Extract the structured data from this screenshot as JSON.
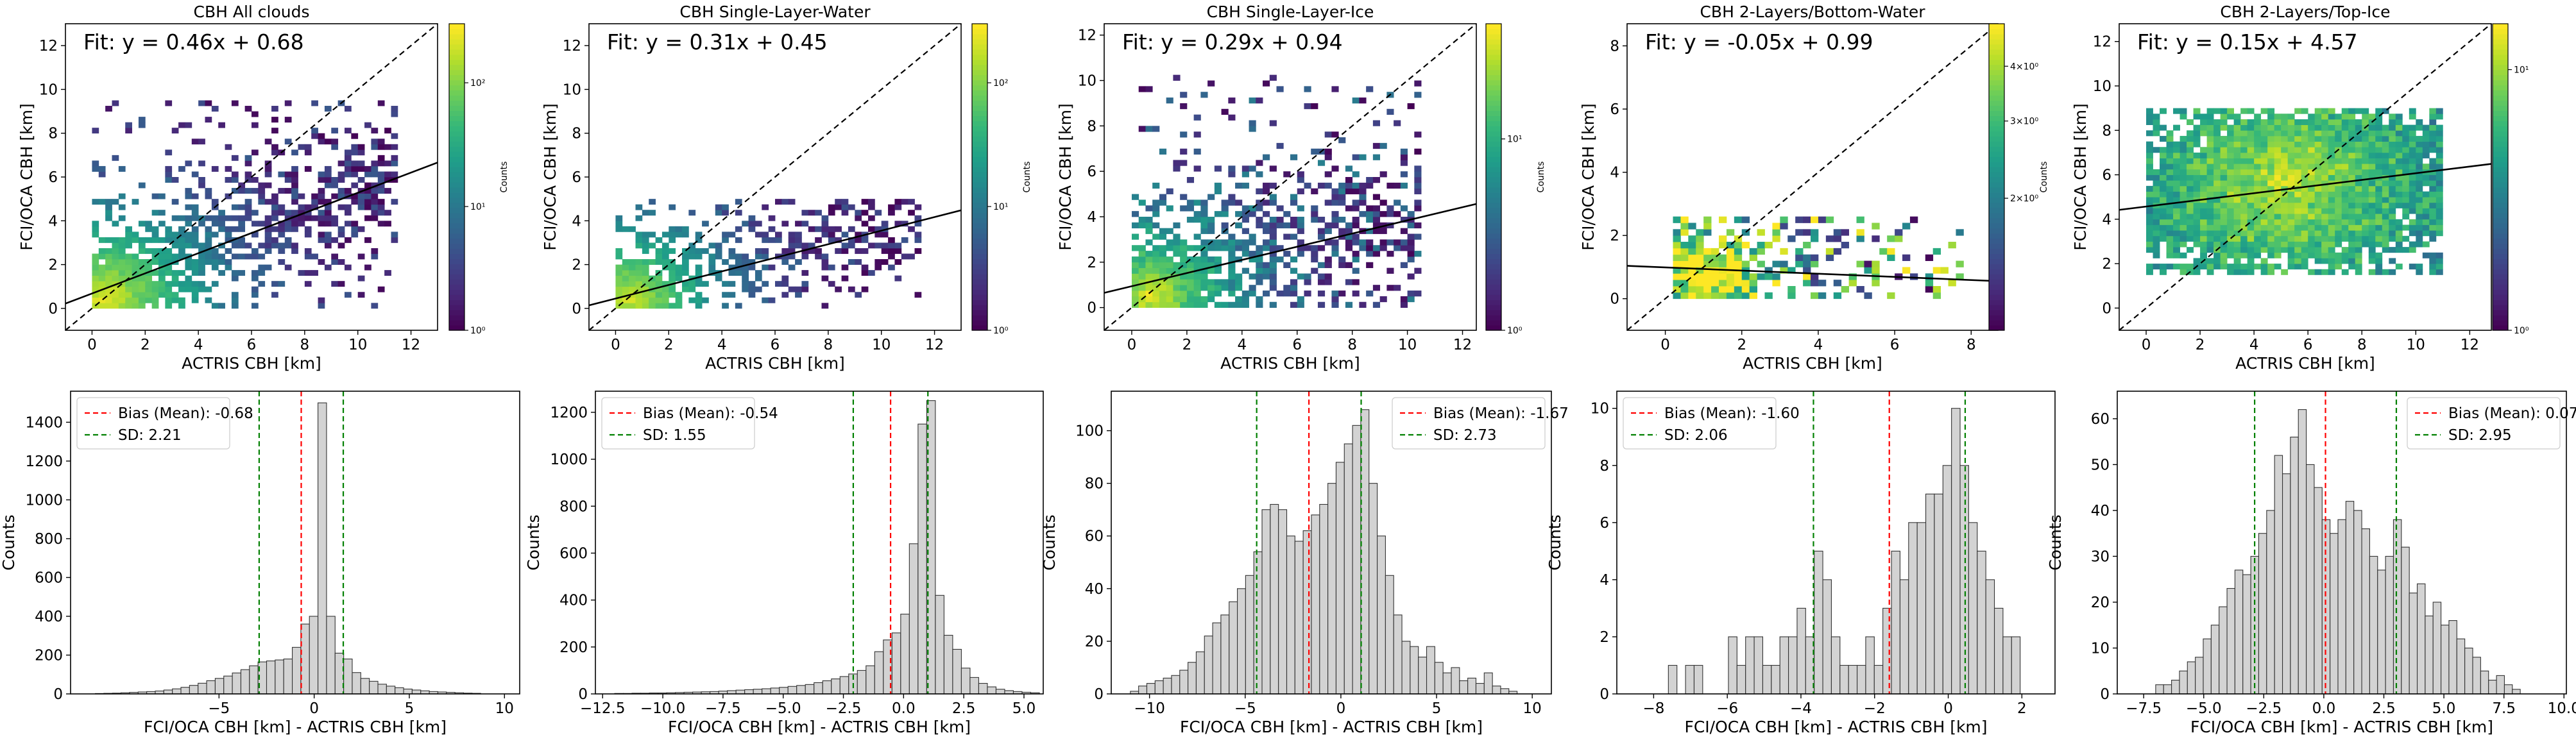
{
  "figure": {
    "colormap": [
      "#440154",
      "#482878",
      "#3e4989",
      "#31688e",
      "#26828e",
      "#1f9e89",
      "#35b779",
      "#6ece58",
      "#b5de2b",
      "#fde725"
    ],
    "fit_line_color": "#000000",
    "identity_line_color": "#000000",
    "hist_bar_color": "#d3d3d3",
    "hist_edge_color": "#333333",
    "bias_line_color": "#ff0000",
    "sd_line_color": "#008000"
  },
  "chart_data": [
    {
      "type": "heatmap",
      "title": "CBH All clouds",
      "fit_label": "Fit: y = 0.46x + 0.68",
      "fit": {
        "slope": 0.46,
        "intercept": 0.68
      },
      "xlabel": "ACTRIS CBH [km]",
      "ylabel": "FCI/OCA CBH [km]",
      "xlim": [
        -1,
        13
      ],
      "ylim": [
        -1,
        13
      ],
      "xticks": [
        0,
        2,
        4,
        6,
        8,
        10,
        12
      ],
      "yticks": [
        0,
        2,
        4,
        6,
        8,
        10,
        12
      ],
      "identity_line": true,
      "colorbar": {
        "label": "Counts",
        "scale": "log",
        "range": [
          1,
          300
        ],
        "ticks": [
          "10⁰",
          "10¹",
          "10²"
        ],
        "tick_values": [
          1,
          10,
          100
        ]
      },
      "density": {
        "bin": 0.25,
        "x_range": [
          0,
          11.5
        ],
        "y_range": [
          0,
          9.3
        ],
        "base": 0.55,
        "peak": {
          "x": 0.3,
          "y": 0.3,
          "counts": 300
        },
        "decay": 0.75,
        "trend": {
          "slope": 0.46,
          "intercept": 0.68,
          "spread": 2.2
        },
        "seed": 11
      }
    },
    {
      "type": "heatmap",
      "title": "CBH Single-Layer-Water",
      "fit_label": "Fit: y = 0.31x + 0.45",
      "fit": {
        "slope": 0.31,
        "intercept": 0.45
      },
      "xlabel": "ACTRIS CBH [km]",
      "ylabel": "FCI/OCA CBH [km]",
      "xlim": [
        -1,
        13
      ],
      "ylim": [
        -1,
        13
      ],
      "xticks": [
        0,
        2,
        4,
        6,
        8,
        10,
        12
      ],
      "yticks": [
        0,
        2,
        4,
        6,
        8,
        10,
        12
      ],
      "identity_line": true,
      "colorbar": {
        "label": "Counts",
        "scale": "log",
        "range": [
          1,
          300
        ],
        "ticks": [
          "10⁰",
          "10¹",
          "10²"
        ],
        "tick_values": [
          1,
          10,
          100
        ]
      },
      "density": {
        "bin": 0.25,
        "x_range": [
          0,
          11.5
        ],
        "y_range": [
          0,
          4.8
        ],
        "base": 0.45,
        "peak": {
          "x": 0.4,
          "y": 0.3,
          "counts": 250
        },
        "decay": 0.85,
        "trend": {
          "slope": 0.31,
          "intercept": 0.45,
          "spread": 1.6
        },
        "seed": 23
      }
    },
    {
      "type": "heatmap",
      "title": "CBH Single-Layer-Ice",
      "fit_label": "Fit: y = 0.29x + 0.94",
      "fit": {
        "slope": 0.29,
        "intercept": 0.94
      },
      "xlabel": "ACTRIS CBH [km]",
      "ylabel": "FCI/OCA CBH [km]",
      "xlim": [
        -1,
        12.5
      ],
      "ylim": [
        -1,
        12.5
      ],
      "xticks": [
        0,
        2,
        4,
        6,
        8,
        10,
        12
      ],
      "yticks": [
        0,
        2,
        4,
        6,
        8,
        10,
        12
      ],
      "identity_line": true,
      "colorbar": {
        "label": "Counts",
        "scale": "log",
        "range": [
          1,
          40
        ],
        "ticks": [
          "10⁰",
          "10¹"
        ],
        "tick_values": [
          1,
          10
        ]
      },
      "density": {
        "bin": 0.25,
        "x_range": [
          0,
          10.3
        ],
        "y_range": [
          0,
          10.2
        ],
        "base": 0.42,
        "peak": {
          "x": 0.6,
          "y": 0.4,
          "counts": 40
        },
        "decay": 0.7,
        "trend": {
          "slope": 0.29,
          "intercept": 0.94,
          "spread": 2.4
        },
        "seed": 37
      }
    },
    {
      "type": "heatmap",
      "title": "CBH 2-Layers/Bottom-Water",
      "fit_label": "Fit: y = -0.05x + 0.99",
      "fit": {
        "slope": -0.05,
        "intercept": 0.99
      },
      "xlabel": "ACTRIS CBH [km]",
      "ylabel": "FCI/OCA CBH [km]",
      "xlim": [
        -1,
        8.7
      ],
      "ylim": [
        -1,
        8.7
      ],
      "xticks": [
        0,
        2,
        4,
        6,
        8
      ],
      "yticks": [
        0,
        2,
        4,
        6,
        8
      ],
      "identity_line": true,
      "colorbar": {
        "label": "Counts",
        "scale": "log",
        "range": [
          1,
          5
        ],
        "ticks": [
          "2×10⁰",
          "3×10⁰",
          "4×10⁰"
        ],
        "tick_values": [
          2,
          3,
          4
        ]
      },
      "density": {
        "bin": 0.2,
        "x_range": [
          0.2,
          7.8
        ],
        "y_range": [
          0,
          2.6
        ],
        "base": 0.18,
        "peak": {
          "x": 1.0,
          "y": 0.6,
          "counts": 5
        },
        "decay": 0.9,
        "trend": {
          "slope": -0.05,
          "intercept": 0.99,
          "spread": 0.9
        },
        "seed": 53
      }
    },
    {
      "type": "heatmap",
      "title": "CBH 2-Layers/Top-Ice",
      "fit_label": "Fit: y = 0.15x + 4.57",
      "fit": {
        "slope": 0.15,
        "intercept": 4.57
      },
      "xlabel": "ACTRIS CBH [km]",
      "ylabel": "FCI/OCA CBH [km]",
      "xlim": [
        -1,
        12.8
      ],
      "ylim": [
        -1,
        12.8
      ],
      "xticks": [
        0,
        2,
        4,
        6,
        8,
        10,
        12
      ],
      "yticks": [
        0,
        2,
        4,
        6,
        8,
        10,
        12
      ],
      "identity_line": true,
      "colorbar": {
        "label": "",
        "scale": "log",
        "range": [
          1,
          15
        ],
        "ticks": [
          "10⁰",
          "10¹"
        ],
        "tick_values": [
          1,
          10
        ]
      },
      "density": {
        "bin": 0.25,
        "x_range": [
          0,
          10.8
        ],
        "y_range": [
          1.5,
          8.8
        ],
        "base": 0.5,
        "peak": {
          "x": 5.0,
          "y": 5.5,
          "counts": 12
        },
        "decay": 0.25,
        "trend": {
          "slope": 0.15,
          "intercept": 4.57,
          "spread": 2.2
        },
        "seed": 71
      }
    },
    {
      "type": "bar",
      "histogram": true,
      "xlabel": "FCI/OCA CBH [km] - ACTRIS CBH [km]",
      "ylabel": "Counts",
      "xlim": [
        -12.8,
        10.8
      ],
      "ylim": [
        0,
        1560
      ],
      "xticks": [
        -5,
        0,
        5,
        10
      ],
      "yticks": [
        0,
        200,
        400,
        600,
        800,
        1000,
        1200,
        1400
      ],
      "bias": -0.68,
      "sd": 2.21,
      "legend": [
        "Bias (Mean): -0.68",
        "SD: 2.21"
      ],
      "legend_position": "upper-left",
      "bins": {
        "start": -11.5,
        "width": 0.45,
        "counts": [
          2,
          3,
          4,
          6,
          8,
          10,
          12,
          15,
          20,
          26,
          34,
          44,
          55,
          68,
          80,
          92,
          108,
          125,
          145,
          165,
          170,
          175,
          180,
          240,
          360,
          400,
          1500,
          400,
          210,
          180,
          110,
          80,
          65,
          50,
          40,
          32,
          25,
          20,
          16,
          12,
          10,
          8,
          6,
          4,
          3
        ]
      }
    },
    {
      "type": "bar",
      "histogram": true,
      "xlabel": "FCI/OCA CBH [km] - ACTRIS CBH [km]",
      "ylabel": "Counts",
      "xlim": [
        -12.8,
        5.8
      ],
      "ylim": [
        0,
        1290
      ],
      "xticks": [
        -12.5,
        -10,
        -7.5,
        -5,
        -2.5,
        0,
        2.5,
        5
      ],
      "xtick_labels": [
        "−12.5",
        "−10.0",
        "−7.5",
        "−5.0",
        "−2.5",
        "0.0",
        "2.5",
        "5.0"
      ],
      "yticks": [
        0,
        200,
        400,
        600,
        800,
        1000,
        1200
      ],
      "bias": -0.54,
      "sd": 1.55,
      "legend": [
        "Bias (Mean): -0.54",
        "SD: 1.55"
      ],
      "legend_position": "upper-left",
      "bins": {
        "start": -12.0,
        "width": 0.36,
        "counts": [
          2,
          2,
          3,
          3,
          4,
          4,
          5,
          6,
          7,
          8,
          9,
          10,
          12,
          14,
          16,
          18,
          20,
          22,
          25,
          28,
          32,
          36,
          40,
          48,
          56,
          64,
          74,
          85,
          100,
          120,
          180,
          230,
          260,
          340,
          640,
          1150,
          1250,
          420,
          250,
          190,
          110,
          70,
          45,
          30,
          20,
          14,
          10,
          7,
          5
        ]
      }
    },
    {
      "type": "bar",
      "histogram": true,
      "xlabel": "FCI/OCA CBH [km] - ACTRIS CBH [km]",
      "ylabel": "Counts",
      "xlim": [
        -12,
        11
      ],
      "ylim": [
        0,
        115
      ],
      "xticks": [
        -10,
        -5,
        0,
        5,
        10
      ],
      "yticks": [
        0,
        20,
        40,
        60,
        80,
        100
      ],
      "bias": -1.67,
      "sd": 2.73,
      "legend": [
        "Bias (Mean): -1.67",
        "SD: 2.73"
      ],
      "legend_position": "upper-right",
      "bins": {
        "start": -11.0,
        "width": 0.43,
        "counts": [
          1,
          3,
          4,
          5,
          6,
          7,
          9,
          12,
          16,
          22,
          27,
          30,
          35,
          40,
          45,
          54,
          70,
          72,
          70,
          60,
          58,
          62,
          68,
          72,
          80,
          88,
          95,
          102,
          108,
          80,
          60,
          45,
          30,
          20,
          18,
          14,
          18,
          12,
          8,
          10,
          5,
          6,
          4,
          8,
          3,
          2,
          1
        ]
      }
    },
    {
      "type": "bar",
      "histogram": true,
      "xlabel": "FCI/OCA CBH [km] - ACTRIS CBH [km]",
      "ylabel": "Counts",
      "xlim": [
        -9,
        2.9
      ],
      "ylim": [
        0,
        10.6
      ],
      "xticks": [
        -8,
        -6,
        -4,
        -2,
        0,
        2
      ],
      "yticks": [
        0,
        2,
        4,
        6,
        8,
        10
      ],
      "bias": -1.6,
      "sd": 2.06,
      "legend": [
        "Bias (Mean): -1.60",
        "SD: 2.06"
      ],
      "legend_position": "upper-left",
      "bins": {
        "start": -7.6,
        "width": 0.233,
        "counts": [
          1,
          0,
          1,
          1,
          0,
          0,
          0,
          2,
          1,
          2,
          2,
          1,
          1,
          2,
          2,
          3,
          2,
          5,
          4,
          2,
          1,
          1,
          1,
          2,
          1,
          3,
          5,
          4,
          6,
          6,
          7,
          7,
          8,
          10,
          8,
          6,
          5,
          4,
          3,
          2,
          2
        ]
      }
    },
    {
      "type": "bar",
      "histogram": true,
      "xlabel": "FCI/OCA CBH [km] - ACTRIS CBH [km]",
      "ylabel": "Counts",
      "xlim": [
        -8.6,
        10.1
      ],
      "ylim": [
        0,
        66
      ],
      "xticks": [
        -7.5,
        -5,
        -2.5,
        0,
        2.5,
        5,
        7.5,
        10
      ],
      "xtick_labels": [
        "−7.5",
        "−5.0",
        "−2.5",
        "0.0",
        "2.5",
        "5.0",
        "7.5",
        "10.0"
      ],
      "yticks": [
        0,
        10,
        20,
        30,
        40,
        50,
        60
      ],
      "bias": 0.07,
      "sd": 2.95,
      "legend": [
        "Bias (Mean): 0.07",
        "SD: 2.95"
      ],
      "legend_position": "upper-right",
      "bins": {
        "start": -7.0,
        "width": 0.33,
        "counts": [
          2,
          2,
          3,
          5,
          7,
          8,
          12,
          15,
          19,
          23,
          27,
          26,
          30,
          35,
          40,
          52,
          48,
          56,
          62,
          50,
          45,
          38,
          35,
          38,
          42,
          40,
          36,
          30,
          27,
          30,
          38,
          32,
          22,
          24,
          17,
          20,
          15,
          16,
          12,
          10,
          8,
          5,
          3,
          4,
          2,
          1
        ]
      }
    }
  ]
}
